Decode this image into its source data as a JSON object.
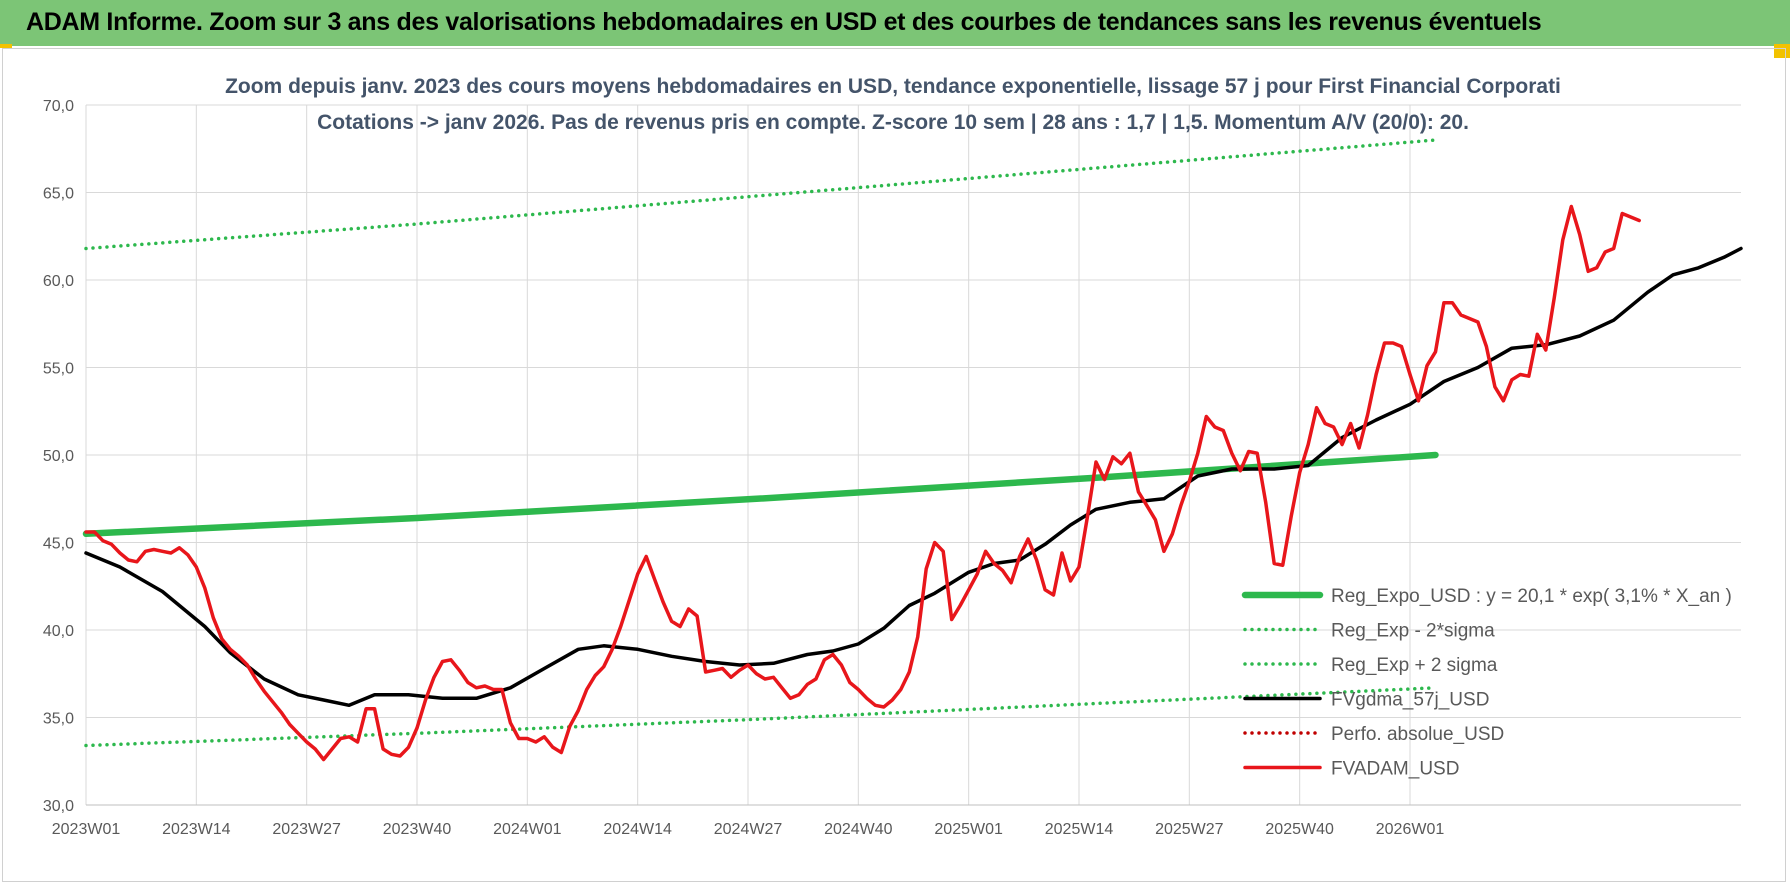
{
  "banner": {
    "title": "ADAM Informe. Zoom sur 3 ans des valorisations hebdomadaires en USD et des courbes de tendances sans les revenus éventuels"
  },
  "colors": {
    "banner_bg": "#7cc576",
    "regression": "#2db84d",
    "price": "#e8161b",
    "smoothing": "#000000",
    "perfo": "#c00000"
  },
  "chart_data": {
    "type": "line",
    "title_line1": "Zoom depuis janv. 2023 des cours moyens hebdomadaires en USD, tendance exponentielle, lissage 57 j pour First Financial Corporati",
    "title_line2": "Cotations -> janv 2026. Pas de revenus pris en compte. Z-score 10 sem  | 28 ans : 1,7 | 1,5. Momentum A/V (20/0): 20.",
    "ylim": [
      30,
      70
    ],
    "y_ticks": [
      "30,0",
      "35,0",
      "40,0",
      "45,0",
      "50,0",
      "55,0",
      "60,0",
      "65,0",
      "70,0"
    ],
    "x_range_weeks": [
      1,
      160
    ],
    "x_ticks": [
      {
        "label": "2023W01",
        "week": 1
      },
      {
        "label": "2023W14",
        "week": 14
      },
      {
        "label": "2023W27",
        "week": 27
      },
      {
        "label": "2023W40",
        "week": 40
      },
      {
        "label": "2024W01",
        "week": 53
      },
      {
        "label": "2024W14",
        "week": 66
      },
      {
        "label": "2024W27",
        "week": 79
      },
      {
        "label": "2024W40",
        "week": 92
      },
      {
        "label": "2025W01",
        "week": 105
      },
      {
        "label": "2025W14",
        "week": 118
      },
      {
        "label": "2025W27",
        "week": 131
      },
      {
        "label": "2025W40",
        "week": 144
      },
      {
        "label": "2026W01",
        "week": 157
      }
    ],
    "grid": true,
    "legend_position": "right",
    "series": [
      {
        "name": "Reg_Expo_USD : y = 20,1 * exp( 3,1% *  X_an )",
        "style": "solid-thick",
        "color": "#2db84d",
        "points": [
          [
            1,
            45.5
          ],
          [
            40,
            46.4
          ],
          [
            80,
            47.5
          ],
          [
            120,
            48.7
          ],
          [
            160,
            50.0
          ]
        ]
      },
      {
        "name": "Reg_Exp - 2*sigma",
        "style": "dotted",
        "color": "#2db84d",
        "points": [
          [
            1,
            33.4
          ],
          [
            40,
            34.1
          ],
          [
            80,
            34.9
          ],
          [
            120,
            35.8
          ],
          [
            160,
            36.7
          ]
        ]
      },
      {
        "name": "Reg_Exp + 2 sigma",
        "style": "dotted",
        "color": "#2db84d",
        "points": [
          [
            1,
            61.8
          ],
          [
            40,
            63.2
          ],
          [
            80,
            64.8
          ],
          [
            120,
            66.4
          ],
          [
            160,
            68.0
          ]
        ]
      },
      {
        "name": "FVgdma_57j_USD",
        "style": "solid",
        "color": "#000000",
        "points": [
          [
            1,
            44.4
          ],
          [
            5,
            43.6
          ],
          [
            10,
            42.2
          ],
          [
            15,
            40.2
          ],
          [
            18,
            38.7
          ],
          [
            22,
            37.2
          ],
          [
            26,
            36.3
          ],
          [
            29,
            36.0
          ],
          [
            32,
            35.7
          ],
          [
            35,
            36.3
          ],
          [
            39,
            36.3
          ],
          [
            43,
            36.1
          ],
          [
            47,
            36.1
          ],
          [
            51,
            36.7
          ],
          [
            55,
            37.8
          ],
          [
            59,
            38.9
          ],
          [
            62,
            39.1
          ],
          [
            66,
            38.9
          ],
          [
            70,
            38.5
          ],
          [
            74,
            38.2
          ],
          [
            78,
            38.0
          ],
          [
            82,
            38.1
          ],
          [
            86,
            38.6
          ],
          [
            89,
            38.8
          ],
          [
            92,
            39.2
          ],
          [
            95,
            40.1
          ],
          [
            98,
            41.4
          ],
          [
            101,
            42.1
          ],
          [
            105,
            43.3
          ],
          [
            108,
            43.8
          ],
          [
            111,
            44.0
          ],
          [
            114,
            44.9
          ],
          [
            117,
            46.0
          ],
          [
            120,
            46.9
          ],
          [
            124,
            47.3
          ],
          [
            128,
            47.5
          ],
          [
            132,
            48.8
          ],
          [
            136,
            49.2
          ],
          [
            141,
            49.2
          ],
          [
            145,
            49.4
          ],
          [
            149,
            51.0
          ],
          [
            153,
            52.0
          ],
          [
            157,
            52.9
          ],
          [
            161,
            54.2
          ],
          [
            165,
            55.0
          ],
          [
            169,
            56.1
          ],
          [
            173,
            56.3
          ],
          [
            177,
            56.8
          ],
          [
            181,
            57.7
          ],
          [
            185,
            59.3
          ],
          [
            188,
            60.3
          ],
          [
            191,
            60.7
          ],
          [
            194,
            61.3
          ],
          [
            196,
            61.8
          ]
        ]
      },
      {
        "name": "Perfo. absolue_USD",
        "style": "dotted",
        "color": "#c00000",
        "points": []
      },
      {
        "name": "FVADAM_USD",
        "style": "solid",
        "color": "#e8161b",
        "points": [
          [
            1,
            45.6
          ],
          [
            2,
            45.6
          ],
          [
            3,
            45.1
          ],
          [
            4,
            44.9
          ],
          [
            5,
            44.4
          ],
          [
            6,
            44.0
          ],
          [
            7,
            43.9
          ],
          [
            8,
            44.5
          ],
          [
            9,
            44.6
          ],
          [
            10,
            44.5
          ],
          [
            11,
            44.4
          ],
          [
            12,
            44.7
          ],
          [
            13,
            44.3
          ],
          [
            14,
            43.6
          ],
          [
            15,
            42.4
          ],
          [
            16,
            40.7
          ],
          [
            17,
            39.5
          ],
          [
            18,
            38.9
          ],
          [
            19,
            38.5
          ],
          [
            20,
            38.0
          ],
          [
            21,
            37.2
          ],
          [
            22,
            36.5
          ],
          [
            23,
            35.9
          ],
          [
            24,
            35.3
          ],
          [
            25,
            34.6
          ],
          [
            26,
            34.1
          ],
          [
            27,
            33.6
          ],
          [
            28,
            33.2
          ],
          [
            29,
            32.6
          ],
          [
            30,
            33.2
          ],
          [
            31,
            33.8
          ],
          [
            32,
            33.9
          ],
          [
            33,
            33.6
          ],
          [
            34,
            35.5
          ],
          [
            35,
            35.5
          ],
          [
            36,
            33.2
          ],
          [
            37,
            32.9
          ],
          [
            38,
            32.8
          ],
          [
            39,
            33.3
          ],
          [
            40,
            34.4
          ],
          [
            41,
            36.0
          ],
          [
            42,
            37.3
          ],
          [
            43,
            38.2
          ],
          [
            44,
            38.3
          ],
          [
            45,
            37.7
          ],
          [
            46,
            37.0
          ],
          [
            47,
            36.7
          ],
          [
            48,
            36.8
          ],
          [
            49,
            36.6
          ],
          [
            50,
            36.6
          ],
          [
            51,
            34.7
          ],
          [
            52,
            33.8
          ],
          [
            53,
            33.8
          ],
          [
            54,
            33.6
          ],
          [
            55,
            33.9
          ],
          [
            56,
            33.3
          ],
          [
            57,
            33.0
          ],
          [
            58,
            34.5
          ],
          [
            59,
            35.4
          ],
          [
            60,
            36.6
          ],
          [
            61,
            37.4
          ],
          [
            62,
            37.9
          ],
          [
            63,
            38.9
          ],
          [
            64,
            40.2
          ],
          [
            65,
            41.7
          ],
          [
            66,
            43.2
          ],
          [
            67,
            44.2
          ],
          [
            68,
            42.9
          ],
          [
            69,
            41.6
          ],
          [
            70,
            40.5
          ],
          [
            71,
            40.2
          ],
          [
            72,
            41.2
          ],
          [
            73,
            40.8
          ],
          [
            74,
            37.6
          ],
          [
            75,
            37.7
          ],
          [
            76,
            37.8
          ],
          [
            77,
            37.3
          ],
          [
            78,
            37.7
          ],
          [
            79,
            38.0
          ],
          [
            80,
            37.5
          ],
          [
            81,
            37.2
          ],
          [
            82,
            37.3
          ],
          [
            83,
            36.7
          ],
          [
            84,
            36.1
          ],
          [
            85,
            36.3
          ],
          [
            86,
            36.9
          ],
          [
            87,
            37.2
          ],
          [
            88,
            38.3
          ],
          [
            89,
            38.6
          ],
          [
            90,
            38.0
          ],
          [
            91,
            37.0
          ],
          [
            92,
            36.6
          ],
          [
            93,
            36.1
          ],
          [
            94,
            35.7
          ],
          [
            95,
            35.6
          ],
          [
            96,
            36.0
          ],
          [
            97,
            36.6
          ],
          [
            98,
            37.6
          ],
          [
            99,
            39.6
          ],
          [
            100,
            43.5
          ],
          [
            101,
            45.0
          ],
          [
            102,
            44.5
          ],
          [
            103,
            40.6
          ],
          [
            104,
            41.4
          ],
          [
            105,
            42.3
          ],
          [
            106,
            43.2
          ],
          [
            107,
            44.5
          ],
          [
            108,
            43.8
          ],
          [
            109,
            43.4
          ],
          [
            110,
            42.7
          ],
          [
            111,
            44.2
          ],
          [
            112,
            45.2
          ],
          [
            113,
            44.0
          ],
          [
            114,
            42.3
          ],
          [
            115,
            42.0
          ],
          [
            116,
            44.4
          ],
          [
            117,
            42.8
          ],
          [
            118,
            43.6
          ],
          [
            119,
            46.5
          ],
          [
            120,
            49.6
          ],
          [
            121,
            48.6
          ],
          [
            122,
            49.9
          ],
          [
            123,
            49.5
          ],
          [
            124,
            50.1
          ],
          [
            125,
            47.9
          ],
          [
            126,
            47.1
          ],
          [
            127,
            46.3
          ],
          [
            128,
            44.5
          ],
          [
            129,
            45.5
          ],
          [
            130,
            47.1
          ],
          [
            131,
            48.5
          ],
          [
            132,
            50.1
          ],
          [
            133,
            52.2
          ],
          [
            134,
            51.6
          ],
          [
            135,
            51.4
          ],
          [
            136,
            50.1
          ],
          [
            137,
            49.1
          ],
          [
            138,
            50.2
          ],
          [
            139,
            50.1
          ],
          [
            140,
            47.3
          ],
          [
            141,
            43.8
          ],
          [
            142,
            43.7
          ],
          [
            143,
            46.5
          ],
          [
            144,
            49.0
          ],
          [
            145,
            50.6
          ],
          [
            146,
            52.7
          ],
          [
            147,
            51.8
          ],
          [
            148,
            51.6
          ],
          [
            149,
            50.6
          ],
          [
            150,
            51.8
          ],
          [
            151,
            50.4
          ],
          [
            152,
            52.3
          ],
          [
            153,
            54.6
          ],
          [
            154,
            56.4
          ],
          [
            155,
            56.4
          ],
          [
            156,
            56.2
          ],
          [
            157,
            54.6
          ],
          [
            158,
            53.1
          ],
          [
            159,
            55.1
          ],
          [
            160,
            55.9
          ],
          [
            161,
            58.7
          ],
          [
            162,
            58.7
          ],
          [
            163,
            58.0
          ],
          [
            164,
            57.8
          ],
          [
            165,
            57.6
          ],
          [
            166,
            56.2
          ],
          [
            167,
            53.9
          ],
          [
            168,
            53.1
          ],
          [
            169,
            54.3
          ],
          [
            170,
            54.6
          ],
          [
            171,
            54.5
          ],
          [
            172,
            56.9
          ],
          [
            173,
            56.0
          ],
          [
            174,
            59.0
          ],
          [
            175,
            62.3
          ],
          [
            176,
            64.2
          ],
          [
            177,
            62.6
          ],
          [
            178,
            60.5
          ],
          [
            179,
            60.7
          ],
          [
            180,
            61.6
          ],
          [
            181,
            61.8
          ],
          [
            182,
            63.8
          ],
          [
            183,
            63.6
          ],
          [
            184,
            63.4
          ]
        ]
      }
    ]
  }
}
